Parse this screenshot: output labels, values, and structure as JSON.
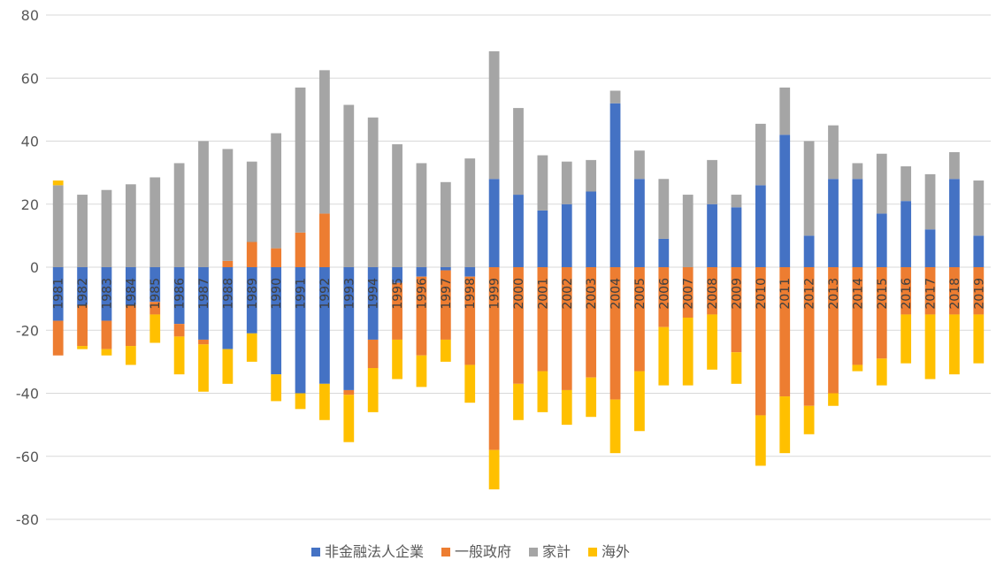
{
  "chart_data": {
    "type": "bar",
    "stacked": true,
    "categories": [
      "1981",
      "1982",
      "1983",
      "1984",
      "1985",
      "1986",
      "1987",
      "1988",
      "1989",
      "1990",
      "1991",
      "1992",
      "1993",
      "1994",
      "1995",
      "1996",
      "1997",
      "1998",
      "1999",
      "2000",
      "2001",
      "2002",
      "2003",
      "2004",
      "2005",
      "2006",
      "2007",
      "2008",
      "2009",
      "2010",
      "2011",
      "2012",
      "2013",
      "2014",
      "2015",
      "2016",
      "2017",
      "2018",
      "2019"
    ],
    "ylim": [
      -80,
      80
    ],
    "yticks": [
      -80,
      -60,
      -40,
      -20,
      0,
      20,
      40,
      60,
      80
    ],
    "grid": true,
    "legend": "bottom-center",
    "series": [
      {
        "name": "非金融法人企業",
        "color": "#4472C4",
        "values": [
          -17,
          -12,
          -17,
          -12,
          -11,
          -18,
          -23,
          -26,
          -21,
          -34,
          -40,
          -37,
          -39,
          -23,
          -5,
          -3,
          -1,
          -3,
          28,
          23,
          18,
          20,
          24,
          52,
          28,
          9,
          0,
          20,
          19,
          26,
          42,
          10,
          28,
          28,
          17,
          21,
          12,
          28,
          10
        ]
      },
      {
        "name": "一般政府",
        "color": "#ED7D31",
        "values": [
          -11,
          -13,
          -9,
          -13,
          -4,
          -4,
          -1.5,
          2,
          8,
          6,
          11,
          17,
          -1.5,
          -9,
          -18,
          -25,
          -22,
          -28,
          -58,
          -37,
          -33,
          -39,
          -35,
          -42,
          -33,
          -19,
          -16,
          -15,
          -27,
          -47,
          -41,
          -44,
          -40,
          -31,
          -29,
          -15,
          -15,
          -15,
          -15
        ]
      },
      {
        "name": "家計",
        "color": "#A5A5A5",
        "values": [
          26,
          23,
          24.5,
          26.3,
          28.5,
          33,
          40,
          35.5,
          25.5,
          36.5,
          46,
          45.5,
          51.5,
          47.5,
          39,
          33,
          27,
          34.5,
          40.5,
          27.5,
          17.5,
          13.5,
          10,
          4,
          9,
          19,
          23,
          14,
          4,
          19.5,
          15,
          30,
          17,
          5,
          19,
          11,
          17.5,
          8.5,
          17.5
        ]
      },
      {
        "name": "海外",
        "color": "#FFC000",
        "values": [
          1.5,
          -1,
          -2,
          -6,
          -9,
          -12,
          -15,
          -11,
          -9,
          -8.5,
          -5,
          -11.5,
          -15,
          -14,
          -12.5,
          -10,
          -7,
          -12,
          -12.5,
          -11.5,
          -13,
          -11,
          -12.5,
          -17,
          -19,
          -18.5,
          -21.5,
          -17.5,
          -10,
          -16,
          -18,
          -9,
          -4,
          -2,
          -8.5,
          -15.5,
          -20.5,
          -19,
          -15.5
        ]
      }
    ]
  },
  "colors": {
    "grid": "#d9d9d9",
    "axis_text": "#595959"
  }
}
